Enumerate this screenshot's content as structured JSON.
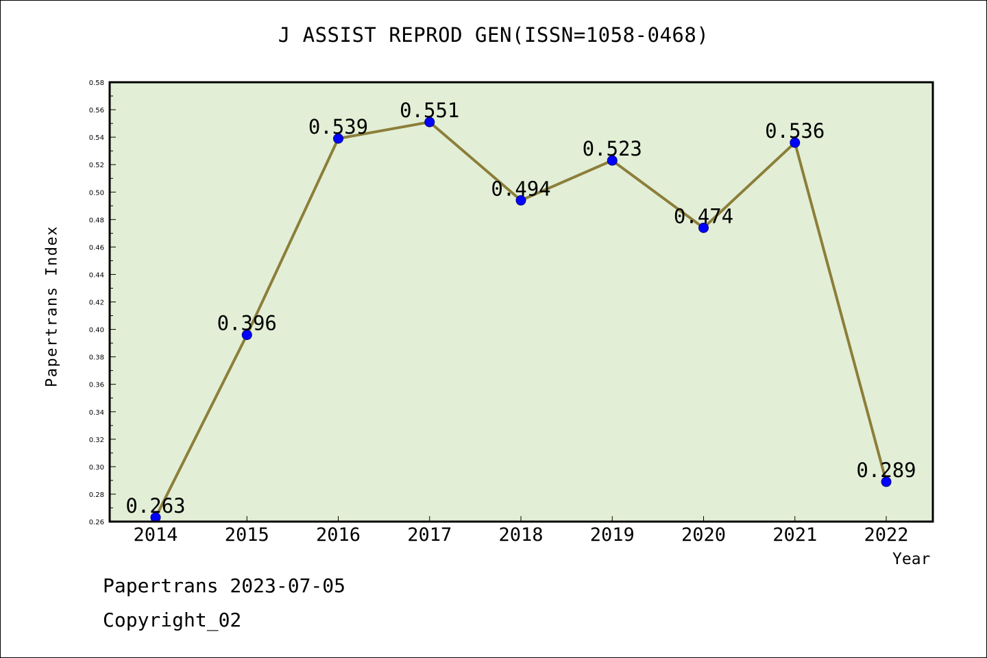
{
  "title": "J ASSIST REPROD GEN(ISSN=1058-0468)",
  "footer": {
    "line1": "Papertrans 2023-07-05",
    "line2": "Copyright_02"
  },
  "colors": {
    "plot_background": "#e2efd6",
    "line": "#8c7e3a",
    "marker": "#0000ff",
    "axis": "#000000"
  },
  "chart_data": {
    "type": "line",
    "title": "J ASSIST REPROD GEN(ISSN=1058-0468)",
    "xlabel": "Year",
    "ylabel": "Papertrans Index",
    "categories": [
      "2014",
      "2015",
      "2016",
      "2017",
      "2018",
      "2019",
      "2020",
      "2021",
      "2022"
    ],
    "values": [
      0.263,
      0.396,
      0.539,
      0.551,
      0.494,
      0.523,
      0.474,
      0.536,
      0.289
    ],
    "data_labels": [
      "0.263",
      "0.396",
      "0.539",
      "0.551",
      "0.494",
      "0.523",
      "0.474",
      "0.536",
      "0.289"
    ],
    "ylim": [
      0.26,
      0.58
    ],
    "yticks": [
      "0.26",
      "0.28",
      "0.30",
      "0.32",
      "0.34",
      "0.36",
      "0.38",
      "0.40",
      "0.42",
      "0.44",
      "0.46",
      "0.48",
      "0.50",
      "0.52",
      "0.54",
      "0.56",
      "0.58"
    ],
    "grid": false,
    "legend": "none"
  }
}
